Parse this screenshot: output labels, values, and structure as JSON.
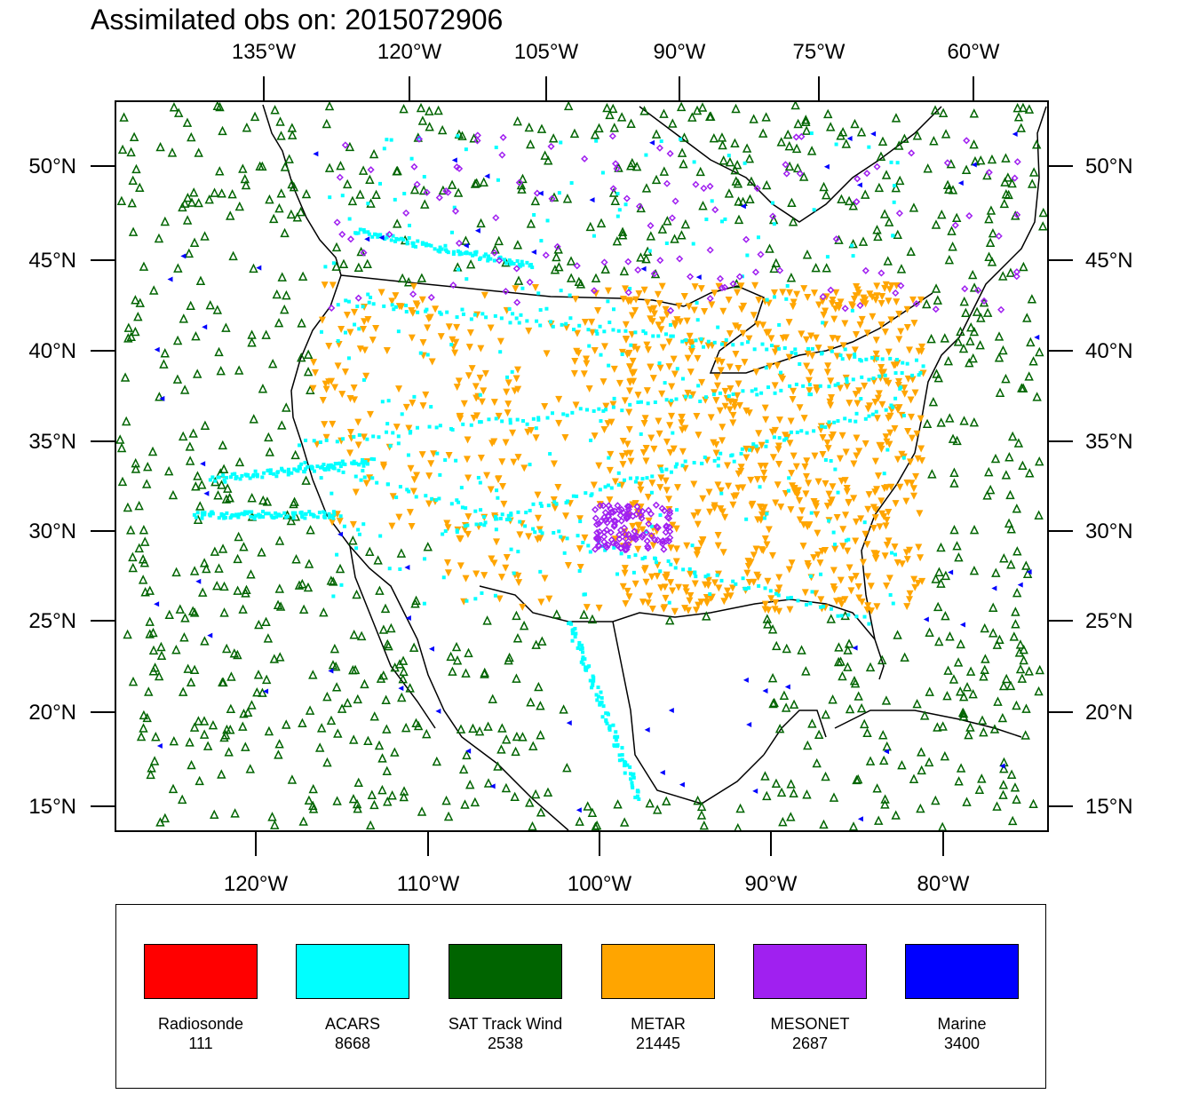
{
  "title": "Assimilated obs on: 2015072906",
  "axes": {
    "top_lon": [
      "135°W",
      "120°W",
      "105°W",
      "90°W",
      "75°W",
      "60°W"
    ],
    "bottom_lon": [
      "120°W",
      "110°W",
      "100°W",
      "90°W",
      "80°W"
    ],
    "left_lat": [
      "50°N",
      "45°N",
      "40°N",
      "35°N",
      "30°N",
      "25°N",
      "20°N",
      "15°N"
    ],
    "right_lat": [
      "50°N",
      "45°N",
      "40°N",
      "35°N",
      "30°N",
      "25°N",
      "20°N",
      "15°N"
    ]
  },
  "legend": [
    {
      "label": "Radiosonde",
      "count": "111",
      "color": "#ff0000"
    },
    {
      "label": "ACARS",
      "count": "8668",
      "color": "#00ffff"
    },
    {
      "label": "SAT Track Wind",
      "count": "2538",
      "color": "#006400"
    },
    {
      "label": "METAR",
      "count": "21445",
      "color": "#ffa500"
    },
    {
      "label": "MESONET",
      "count": "2687",
      "color": "#a020f0"
    },
    {
      "label": "Marine",
      "count": "3400",
      "color": "#0000ff"
    }
  ],
  "colors": {
    "radiosonde": "#ff0000",
    "acars": "#00ffff",
    "sat": "#006400",
    "metar": "#ffa500",
    "mesonet": "#a020f0",
    "marine": "#0000ff",
    "coast": "#000000"
  }
}
